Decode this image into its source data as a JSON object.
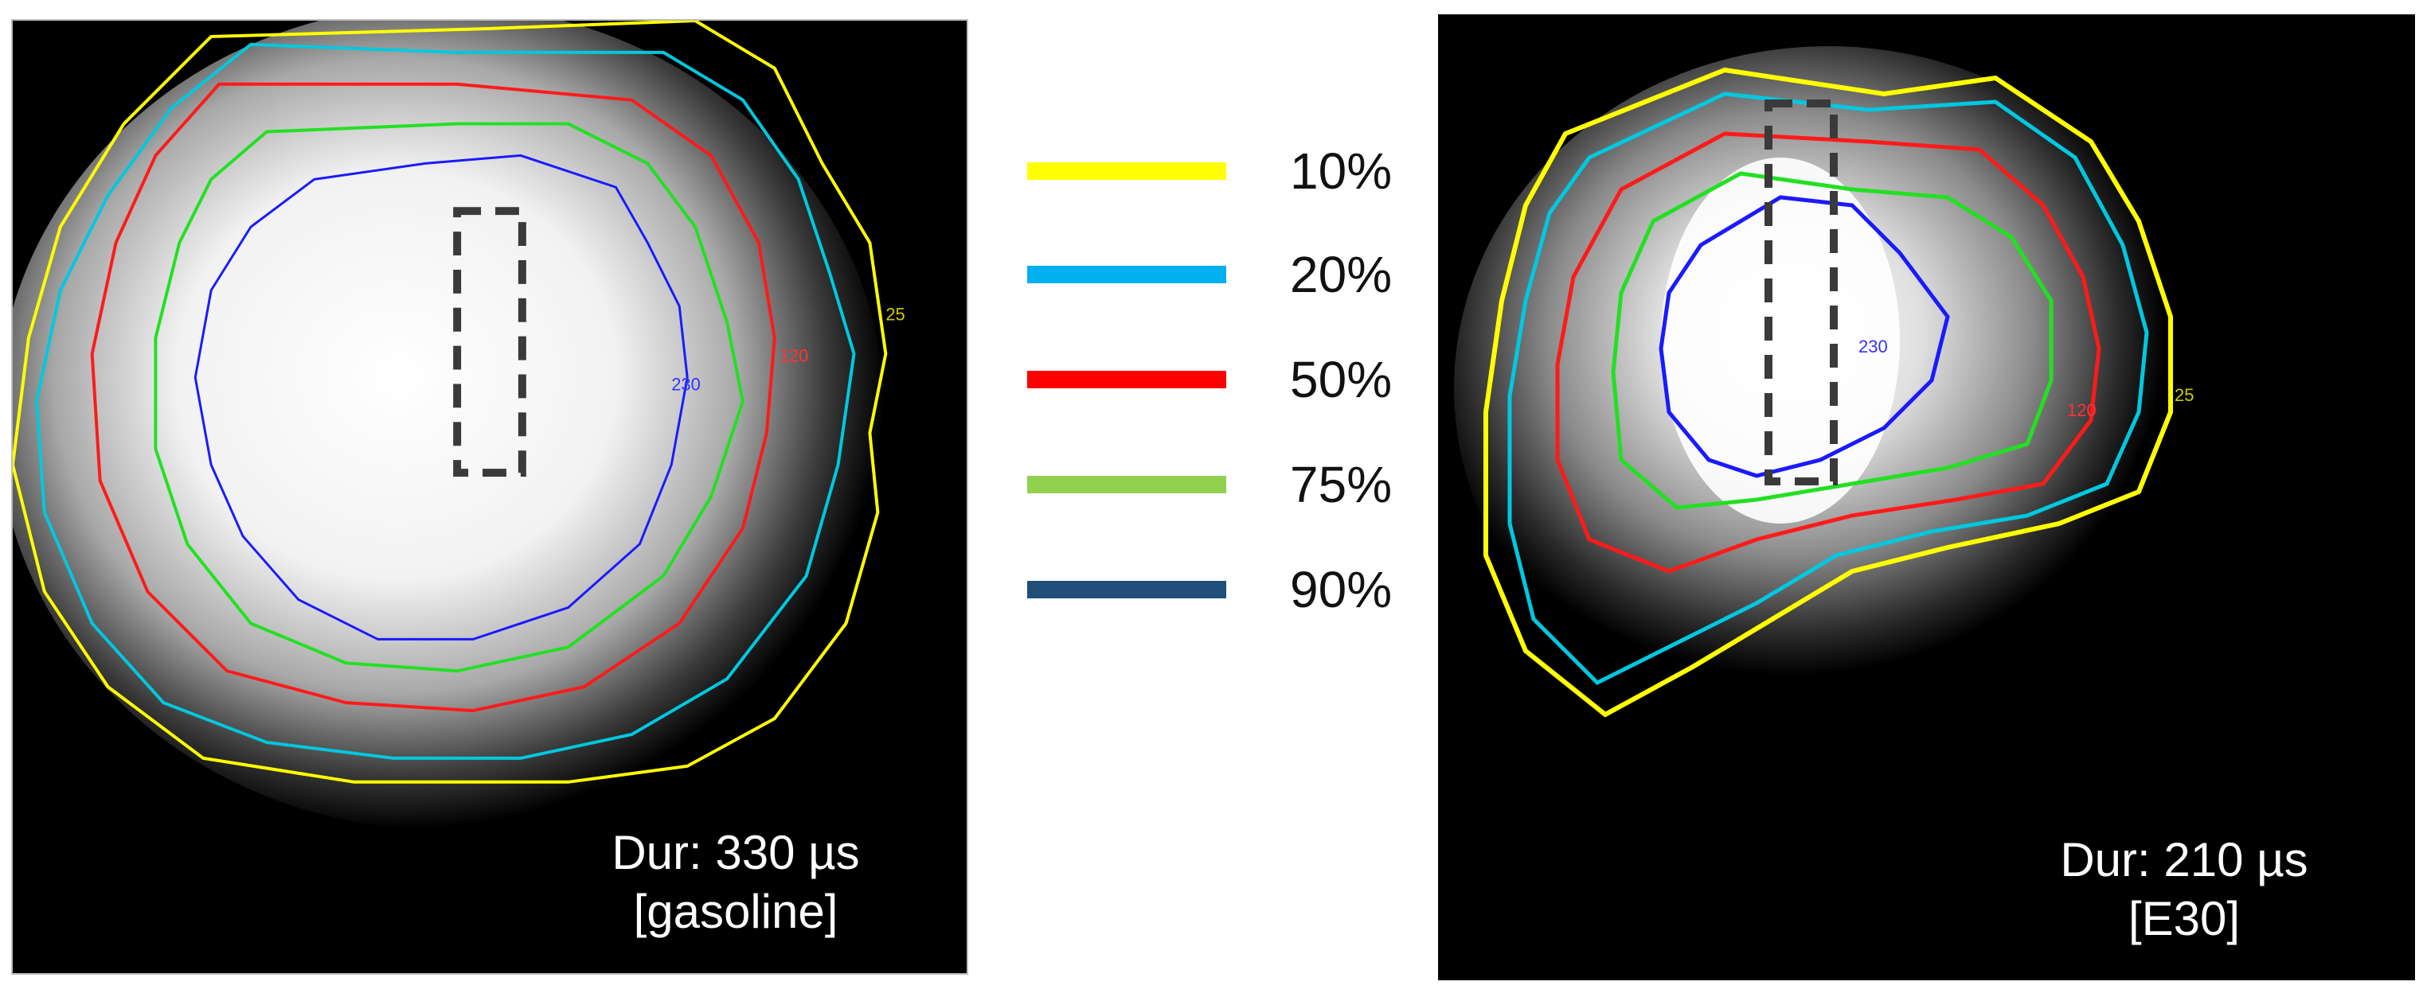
{
  "panels": [
    {
      "duration": "Dur: 330 µs",
      "fuel": "[gasoline]",
      "contour_values": [
        "25",
        "120",
        "230"
      ]
    },
    {
      "duration": "Dur: 210 µs",
      "fuel": "[E30]",
      "contour_values": [
        "25",
        "120",
        "230"
      ]
    }
  ],
  "legend": [
    {
      "label": "10%",
      "color": "#ffff00"
    },
    {
      "label": "20%",
      "color": "#00b0f0"
    },
    {
      "label": "50%",
      "color": "#ff0000"
    },
    {
      "label": "75%",
      "color": "#92d050"
    },
    {
      "label": "90%",
      "color": "#1f4e79"
    }
  ],
  "contour_colors": {
    "yellow": "#ffff00",
    "cyan": "#00c8e0",
    "red": "#ff1a1a",
    "green": "#22e022",
    "blue": "#1a1aff"
  }
}
